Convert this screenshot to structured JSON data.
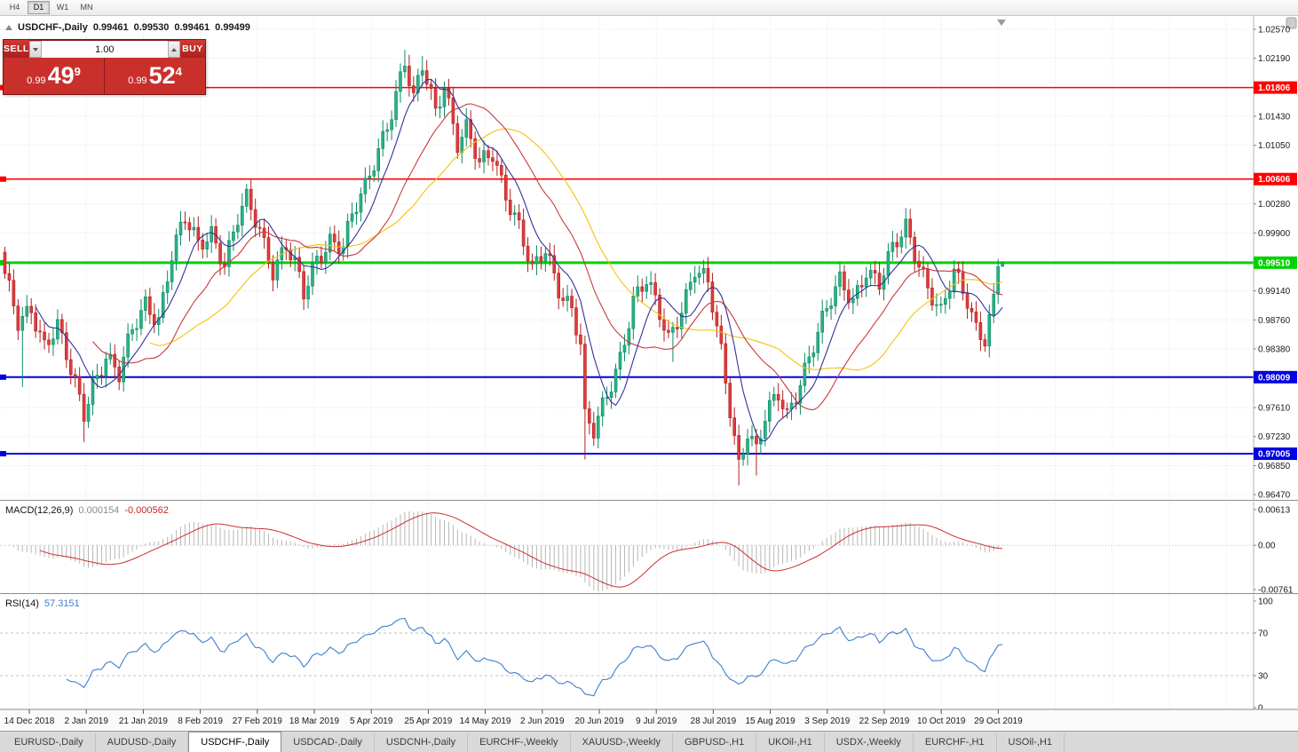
{
  "toolbar": {
    "timeframes": [
      {
        "label": "H4",
        "active": false
      },
      {
        "label": "D1",
        "active": true
      },
      {
        "label": "W1",
        "active": false
      },
      {
        "label": "MN",
        "active": false
      }
    ]
  },
  "header": {
    "title": "USDCHF-,Daily",
    "open": "0.99461",
    "high": "0.99530",
    "low": "0.99461",
    "close": "0.99499"
  },
  "trade_panel": {
    "sell_label": "SELL",
    "buy_label": "BUY",
    "volume": "1.00",
    "sell_price_small": "0.99",
    "sell_price_big": "49",
    "sell_price_sup": "9",
    "buy_price_small": "0.99",
    "buy_price_big": "52",
    "buy_price_sup": "4"
  },
  "indicators": {
    "macd": {
      "label": "MACD(12,26,9)",
      "value_main": "0.000154",
      "value_signal": "-0.000562"
    },
    "rsi": {
      "label": "RSI(14)",
      "value": "57.3151"
    }
  },
  "chart_data": {
    "type": "candlestick",
    "symbol": "USDCHF",
    "timeframe": "Daily",
    "candle_count": 228,
    "price_axis": {
      "max": 1.0257,
      "min": 0.9647,
      "ticks": [
        "1.02570",
        "1.02190",
        "1.01430",
        "1.01050",
        "1.00280",
        "0.99900",
        "0.99140",
        "0.98760",
        "0.98380",
        "0.97610",
        "0.97230",
        "0.96850",
        "0.96470"
      ]
    },
    "hlines": [
      {
        "price": 1.01806,
        "label": "1.01806",
        "color": "#ff0000",
        "width": 1.6
      },
      {
        "price": 1.00606,
        "label": "1.00606",
        "color": "#ff0000",
        "width": 1.6
      },
      {
        "price": 0.9951,
        "label": "0.99510",
        "color": "#00d200",
        "width": 3
      },
      {
        "price": 0.98009,
        "label": "0.98009",
        "color": "#0000e0",
        "width": 2
      },
      {
        "price": 0.97005,
        "label": "0.97005",
        "color": "#0000e0",
        "width": 2
      }
    ],
    "x_labels": [
      "14 Dec 2018",
      "2 Jan 2019",
      "21 Jan 2019",
      "8 Feb 2019",
      "27 Feb 2019",
      "18 Mar 2019",
      "5 Apr 2019",
      "25 Apr 2019",
      "14 May 2019",
      "2 Jun 2019",
      "20 Jun 2019",
      "9 Jul 2019",
      "28 Jul 2019",
      "15 Aug 2019",
      "3 Sep 2019",
      "22 Sep 2019",
      "10 Oct 2019",
      "29 Oct 2019"
    ],
    "close_waypoints": [
      [
        0,
        0.993
      ],
      [
        3,
        0.987
      ],
      [
        6,
        0.9895
      ],
      [
        9,
        0.9845
      ],
      [
        12,
        0.9865
      ],
      [
        15,
        0.9805
      ],
      [
        18,
        0.9755
      ],
      [
        20,
        0.9795
      ],
      [
        23,
        0.983
      ],
      [
        26,
        0.98
      ],
      [
        29,
        0.986
      ],
      [
        32,
        0.99
      ],
      [
        35,
        0.988
      ],
      [
        38,
        0.996
      ],
      [
        41,
        1.0005
      ],
      [
        44,
        0.9975
      ],
      [
        47,
        0.9995
      ],
      [
        50,
        0.995
      ],
      [
        53,
        1.0005
      ],
      [
        55,
        1.003
      ],
      [
        58,
        0.9995
      ],
      [
        61,
        0.9945
      ],
      [
        64,
        0.9975
      ],
      [
        66,
        0.9945
      ],
      [
        68,
        0.9905
      ],
      [
        71,
        0.9955
      ],
      [
        74,
        0.9985
      ],
      [
        77,
        0.9975
      ],
      [
        79,
        1.001
      ],
      [
        82,
        1.0045
      ],
      [
        85,
        1.01
      ],
      [
        88,
        1.0155
      ],
      [
        91,
        1.0215
      ],
      [
        93,
        1.016
      ],
      [
        95,
        1.0205
      ],
      [
        98,
        1.015
      ],
      [
        100,
        1.019
      ],
      [
        103,
        1.011
      ],
      [
        105,
        1.0125
      ],
      [
        108,
        1.0075
      ],
      [
        111,
        1.0095
      ],
      [
        114,
        1.0045
      ],
      [
        117,
        1.0
      ],
      [
        120,
        0.9935
      ],
      [
        123,
        0.9965
      ],
      [
        126,
        0.992
      ],
      [
        129,
        0.9895
      ],
      [
        131,
        0.9845
      ],
      [
        132,
        0.9745
      ],
      [
        134,
        0.9725
      ],
      [
        137,
        0.9775
      ],
      [
        140,
        0.983
      ],
      [
        143,
        0.9905
      ],
      [
        146,
        0.9925
      ],
      [
        149,
        0.988
      ],
      [
        151,
        0.985
      ],
      [
        154,
        0.9895
      ],
      [
        157,
        0.9945
      ],
      [
        160,
        0.992
      ],
      [
        163,
        0.983
      ],
      [
        165,
        0.976
      ],
      [
        167,
        0.969
      ],
      [
        169,
        0.9735
      ],
      [
        171,
        0.9705
      ],
      [
        173,
        0.9745
      ],
      [
        176,
        0.9775
      ],
      [
        178,
        0.975
      ],
      [
        181,
        0.98
      ],
      [
        184,
        0.9845
      ],
      [
        187,
        0.9885
      ],
      [
        190,
        0.9925
      ],
      [
        193,
        0.9905
      ],
      [
        196,
        0.9945
      ],
      [
        199,
        0.992
      ],
      [
        202,
        0.9965
      ],
      [
        205,
        1.0
      ],
      [
        208,
        0.9955
      ],
      [
        210,
        0.992
      ],
      [
        213,
        0.988
      ],
      [
        216,
        0.9935
      ],
      [
        219,
        0.9905
      ],
      [
        221,
        0.987
      ],
      [
        223,
        0.9855
      ],
      [
        225,
        0.99
      ],
      [
        227,
        0.99499
      ]
    ],
    "wick_spikes": [
      {
        "i": 4,
        "low": 0.9788
      },
      {
        "i": 18,
        "low": 0.9716
      },
      {
        "i": 41,
        "high": 1.0016
      },
      {
        "i": 54,
        "high": 1.0042
      },
      {
        "i": 91,
        "high": 1.023
      },
      {
        "i": 95,
        "high": 1.0222
      },
      {
        "i": 132,
        "low": 0.9693
      },
      {
        "i": 152,
        "low": 0.9821
      },
      {
        "i": 167,
        "low": 0.9659
      },
      {
        "i": 171,
        "low": 0.9672
      },
      {
        "i": 205,
        "high": 1.0012
      }
    ],
    "last_ohlc": {
      "open": 0.99461,
      "high": 0.9953,
      "low": 0.99461,
      "close": 0.99499
    },
    "ma": [
      {
        "period": 34,
        "color": "#f2c211"
      },
      {
        "period": 21,
        "color": "#c93a3a"
      },
      {
        "period": 8,
        "color": "#32329b"
      }
    ],
    "macd_axis": {
      "max": 0.00613,
      "min": -0.00761,
      "labels": [
        {
          "text": "0.00613",
          "value": 0.00613
        },
        {
          "text": "0.00",
          "value": 0
        },
        {
          "text": "-0.00761",
          "value": -0.00761
        }
      ]
    },
    "rsi_axis": {
      "labels": [
        {
          "text": "100",
          "value": 100
        },
        {
          "text": "70",
          "value": 70
        },
        {
          "text": "30",
          "value": 30
        },
        {
          "text": "0",
          "value": 0
        }
      ],
      "levels": [
        70,
        30
      ]
    },
    "colors": {
      "grid": "#e4e4e4",
      "up_fill": "#29b287",
      "up_stroke": "#0c8a63",
      "down_fill": "#e23b3b",
      "down_stroke": "#b02020",
      "macd_hist": "#b6b6b6",
      "macd_signal": "#cc2e2e",
      "rsi_line": "#3f7fce"
    }
  },
  "tabs": {
    "items": [
      {
        "label": "EURUSD-,Daily",
        "active": false
      },
      {
        "label": "AUDUSD-,Daily",
        "active": false
      },
      {
        "label": "USDCHF-,Daily",
        "active": true
      },
      {
        "label": "USDCAD-,Daily",
        "active": false
      },
      {
        "label": "USDCNH-,Daily",
        "active": false
      },
      {
        "label": "EURCHF-,Weekly",
        "active": false
      },
      {
        "label": "XAUUSD-,Weekly",
        "active": false
      },
      {
        "label": "GBPUSD-,H1",
        "active": false
      },
      {
        "label": "UKOil-,H1",
        "active": false
      },
      {
        "label": "USDX-,Weekly",
        "active": false
      },
      {
        "label": "EURCHF-,H1",
        "active": false
      },
      {
        "label": "USOil-,H1",
        "active": false
      }
    ]
  }
}
